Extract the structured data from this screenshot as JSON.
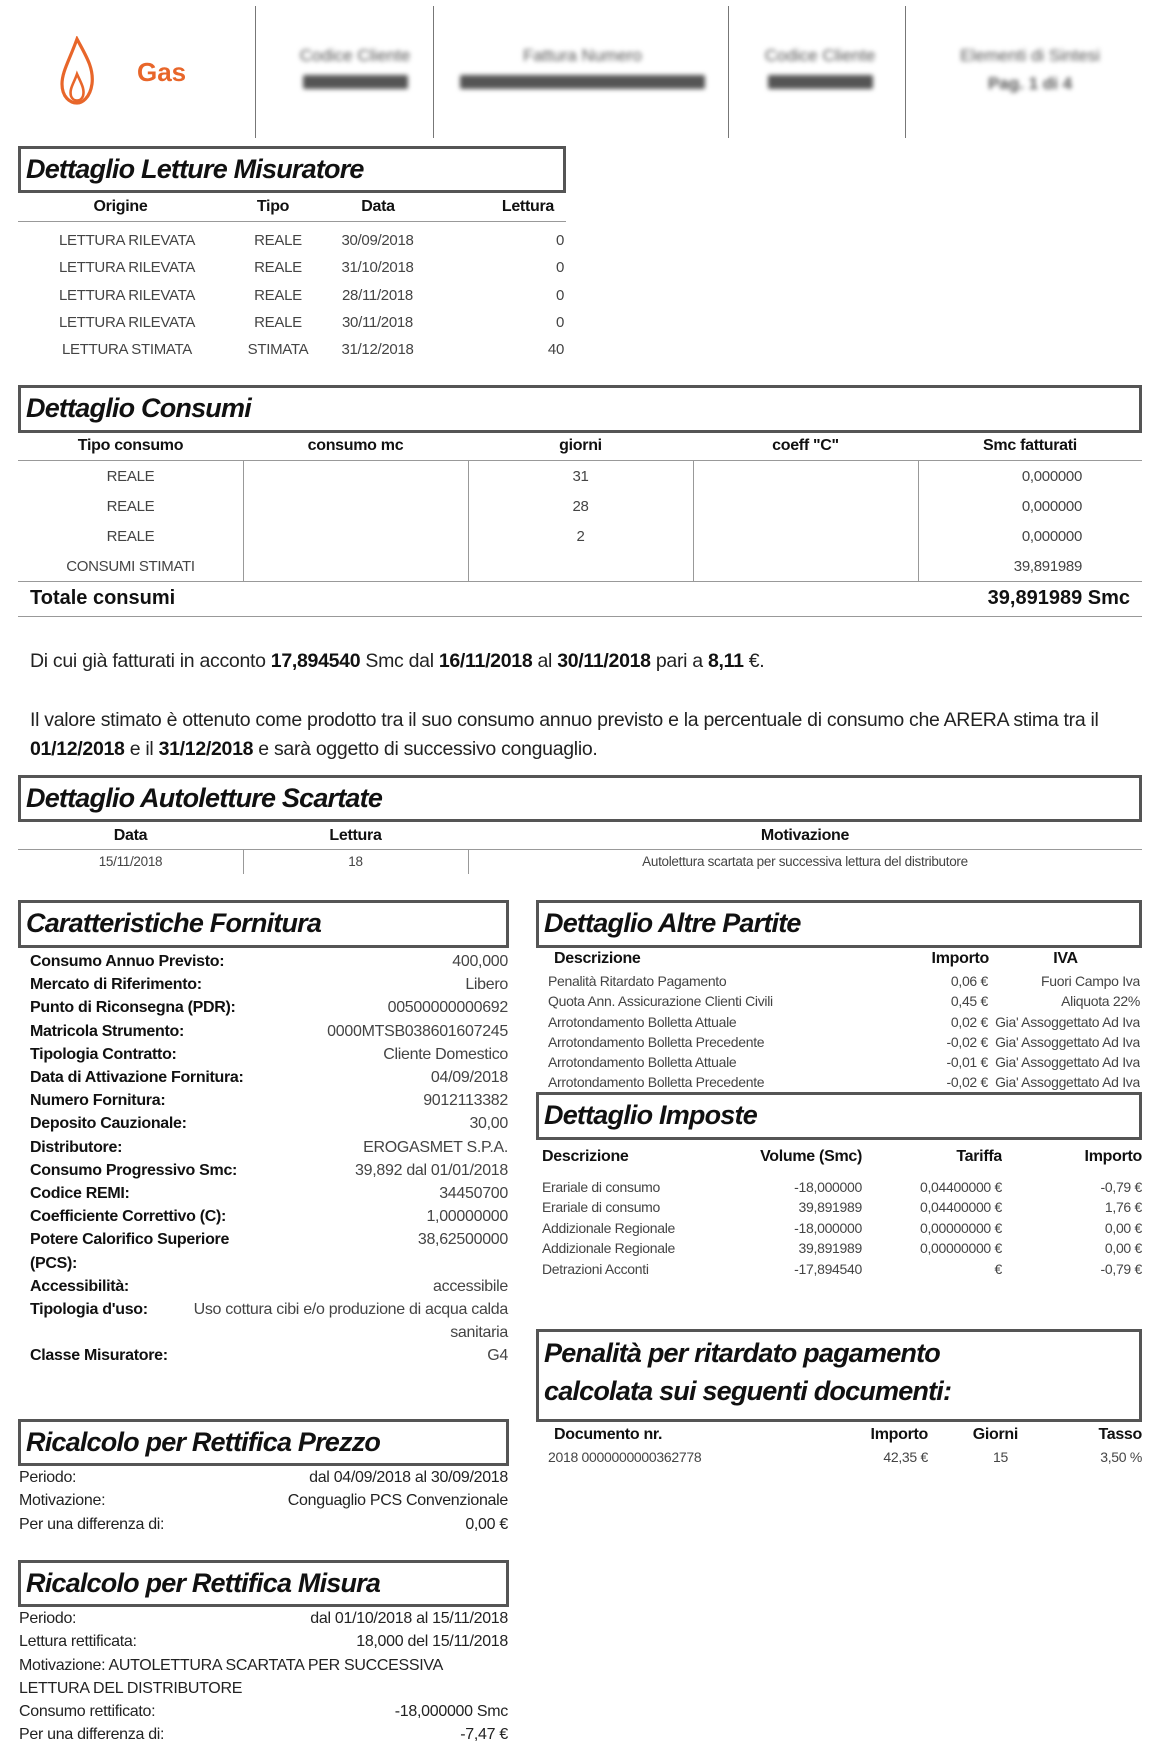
{
  "header": {
    "logo_label": "Gas",
    "brand_color": "#e8662a",
    "cells": [
      {
        "label": "Codice Cliente"
      },
      {
        "label": "Fattura Numero"
      },
      {
        "label": "Codice Cliente"
      },
      {
        "label": "Elementi di Sintesi",
        "sub": "Pag. 1 di 4"
      }
    ]
  },
  "letture": {
    "title": "Dettaglio Letture Misuratore",
    "columns": [
      "Origine",
      "Tipo",
      "Data",
      "Lettura"
    ],
    "rows": [
      [
        "LETTURA RILEVATA",
        "REALE",
        "30/09/2018",
        "0"
      ],
      [
        "LETTURA RILEVATA",
        "REALE",
        "31/10/2018",
        "0"
      ],
      [
        "LETTURA RILEVATA",
        "REALE",
        "28/11/2018",
        "0"
      ],
      [
        "LETTURA RILEVATA",
        "REALE",
        "30/11/2018",
        "0"
      ],
      [
        "LETTURA STIMATA",
        "STIMATA",
        "31/12/2018",
        "40"
      ]
    ]
  },
  "consumi": {
    "title": "Dettaglio Consumi",
    "columns": [
      "Tipo consumo",
      "consumo mc",
      "giorni",
      "coeff \"C\"",
      "Smc fatturati"
    ],
    "rows": [
      [
        "REALE",
        "",
        "31",
        "",
        "0,000000"
      ],
      [
        "REALE",
        "",
        "28",
        "",
        "0,000000"
      ],
      [
        "REALE",
        "",
        "2",
        "",
        "0,000000"
      ],
      [
        "CONSUMI STIMATI",
        "",
        "",
        "",
        "39,891989"
      ]
    ],
    "total_label": "Totale consumi",
    "total_value": "39,891989 Smc"
  },
  "notes": {
    "p1": [
      "Di cui già fatturati in acconto ",
      "17,894540",
      " Smc dal  ",
      "16/11/2018",
      " al ",
      "30/11/2018",
      " pari a ",
      "8,11",
      " €."
    ],
    "p2": [
      "Il valore stimato è ottenuto come prodotto tra il suo consumo annuo previsto e la percentuale di consumo che ARERA stima tra il ",
      "01/12/2018",
      " e il ",
      "31/12/2018",
      " e sarà oggetto di successivo conguaglio."
    ]
  },
  "autoletture": {
    "title": "Dettaglio Autoletture Scartate",
    "columns": [
      "Data",
      "Lettura",
      "Motivazione"
    ],
    "rows": [
      [
        "15/11/2018",
        "18",
        "Autolettura scartata per successiva lettura del distributore"
      ]
    ]
  },
  "fornitura": {
    "title": "Caratteristiche Fornitura",
    "rows": [
      [
        "Consumo Annuo Previsto:",
        "400,000"
      ],
      [
        "Mercato di Riferimento:",
        "Libero"
      ],
      [
        "Punto di Riconsegna (PDR):",
        "00500000000692"
      ],
      [
        "Matricola Strumento:",
        "0000MTSB038601607245"
      ],
      [
        "Tipologia Contratto:",
        "Cliente Domestico"
      ],
      [
        "Data di Attivazione Fornitura:",
        "04/09/2018"
      ],
      [
        "Numero Fornitura:",
        "9012113382"
      ],
      [
        "Deposito Cauzionale:",
        "30,00"
      ],
      [
        "Distributore:",
        "EROGASMET S.P.A."
      ],
      [
        "Consumo Progressivo Smc:",
        "39,892 dal 01/01/2018"
      ],
      [
        "Codice REMI:",
        "34450700"
      ],
      [
        "Coefficiente Correttivo (C):",
        "1,00000000"
      ],
      [
        "Potere Calorifico Superiore (PCS):",
        "38,62500000"
      ],
      [
        "Accessibilità:",
        "accessibile"
      ],
      [
        "Tipologia d'uso:",
        "Uso cottura cibi e/o produzione di acqua calda sanitaria"
      ],
      [
        "Classe Misuratore:",
        "G4"
      ]
    ]
  },
  "altre_partite": {
    "title": "Dettaglio Altre Partite",
    "columns": [
      "Descrizione",
      "Importo",
      "IVA"
    ],
    "rows": [
      [
        "Penalità Ritardato Pagamento",
        "0,06 €",
        "Fuori Campo Iva"
      ],
      [
        "Quota Ann. Assicurazione Clienti Civili",
        "0,45 €",
        "Aliquota 22%"
      ],
      [
        "Arrotondamento Bolletta Attuale",
        "0,02 €",
        "Gia' Assoggettato Ad Iva"
      ],
      [
        "Arrotondamento Bolletta Precedente",
        "-0,02 €",
        "Gia' Assoggettato Ad Iva"
      ],
      [
        "Arrotondamento Bolletta Attuale",
        "-0,01 €",
        "Gia' Assoggettato Ad Iva"
      ],
      [
        "Arrotondamento Bolletta Precedente",
        "-0,02 €",
        "Gia' Assoggettato Ad Iva"
      ]
    ]
  },
  "imposte": {
    "title": "Dettaglio Imposte",
    "columns": [
      "Descrizione",
      "Volume (Smc)",
      "Tariffa",
      "Importo"
    ],
    "rows": [
      [
        "Erariale di consumo",
        "-18,000000",
        "0,04400000 €",
        "-0,79 €"
      ],
      [
        "Erariale di consumo",
        "39,891989",
        "0,04400000 €",
        "1,76 €"
      ],
      [
        "Addizionale Regionale",
        "-18,000000",
        "0,00000000 €",
        "0,00 €"
      ],
      [
        "Addizionale Regionale",
        "39,891989",
        "0,00000000 €",
        "0,00 €"
      ],
      [
        "Detrazioni Acconti",
        "-17,894540",
        "€",
        "-0,79 €"
      ]
    ]
  },
  "penalita": {
    "title_line1": "Penalità per ritardato pagamento",
    "title_line2": "calcolata sui seguenti documenti:",
    "columns": [
      "Documento nr.",
      "Importo",
      "Giorni",
      "Tasso"
    ],
    "rows": [
      [
        "2018 0000000000362778",
        "42,35 €",
        "15",
        "3,50 %"
      ]
    ]
  },
  "rettifica_prezzo": {
    "title": "Ricalcolo per Rettifica Prezzo",
    "rows": [
      [
        "Periodo:",
        "dal 04/09/2018 al 30/09/2018"
      ],
      [
        "Motivazione:",
        "Conguaglio PCS Convenzionale"
      ],
      [
        "Per una differenza di:",
        "0,00 €"
      ]
    ]
  },
  "rettifica_misura": {
    "title": "Ricalcolo per Rettifica Misura",
    "periodo_label": "Periodo:",
    "periodo": "dal 01/10/2018 al 15/11/2018",
    "lettura_label": "Lettura rettificata:",
    "lettura": "18,000 del 15/11/2018",
    "motivazione": "Motivazione: AUTOLETTURA SCARTATA PER SUCCESSIVA LETTURA DEL DISTRIBUTORE",
    "consumo_label": "Consumo rettificato:",
    "consumo": "-18,000000 Smc",
    "differenza_label": "Per una differenza di:",
    "differenza": "-7,47 €"
  }
}
